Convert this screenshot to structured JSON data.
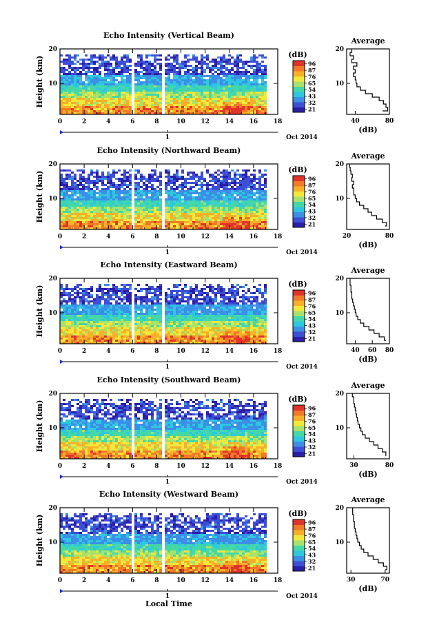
{
  "figure": {
    "xlabel": "Local Time",
    "date_label": "Oct 2014",
    "day_label": "1",
    "colorbar_unit": "(dB)",
    "colorbar_ticks": [
      "96",
      "87",
      "76",
      "65",
      "54",
      "43",
      "32",
      "21"
    ],
    "colormap": [
      "#2b1ea8",
      "#3c4fd6",
      "#3c8fe6",
      "#2ec7e0",
      "#44d8a8",
      "#a8e26a",
      "#f2e83c",
      "#f7b028",
      "#f07a28",
      "#e0342a"
    ]
  },
  "chart_data": [
    {
      "type": "heatmap",
      "title": "Echo Intensity (Vertical Beam)",
      "ylabel": "Height (km)",
      "xlim": [
        0,
        18
      ],
      "ylim": [
        1,
        20
      ],
      "x_ticks": [
        "0",
        "2",
        "4",
        "6",
        "8",
        "10",
        "12",
        "14",
        "16",
        "18"
      ],
      "y_ticks": [
        "20",
        "10"
      ],
      "profile": {
        "title": "Average",
        "xlabel": "(dB)",
        "xlim": [
          30,
          80
        ],
        "x_ticks": [
          "40",
          "80"
        ],
        "heights": [
          2,
          3,
          4,
          5,
          6,
          7,
          8,
          9,
          10,
          11,
          12,
          13,
          14,
          15,
          16,
          17,
          18,
          19,
          20
        ],
        "values": [
          72,
          78,
          76,
          73,
          68,
          60,
          52,
          46,
          42,
          41,
          40,
          38,
          40,
          38,
          42,
          36,
          38,
          34,
          36
        ]
      }
    },
    {
      "type": "heatmap",
      "title": "Echo Intensity (Northward Beam)",
      "ylabel": "Height (km)",
      "xlim": [
        0,
        18
      ],
      "ylim": [
        1,
        20
      ],
      "x_ticks": [
        "0",
        "2",
        "4",
        "6",
        "8",
        "10",
        "12",
        "14",
        "16",
        "18"
      ],
      "y_ticks": [
        "20",
        "10"
      ],
      "profile": {
        "title": "Average",
        "xlabel": "(dB)",
        "xlim": [
          20,
          80
        ],
        "x_ticks": [
          "20",
          "80"
        ],
        "heights": [
          2,
          3,
          4,
          5,
          6,
          7,
          8,
          9,
          10,
          11,
          12,
          13,
          14,
          15,
          16,
          17,
          18,
          19,
          20
        ],
        "values": [
          74,
          76,
          70,
          62,
          55,
          50,
          44,
          38,
          34,
          32,
          30,
          30,
          28,
          30,
          27,
          28,
          26,
          25,
          24
        ]
      }
    },
    {
      "type": "heatmap",
      "title": "Echo Intensity (Eastward Beam)",
      "ylabel": "Height (km)",
      "xlim": [
        0,
        18
      ],
      "ylim": [
        1,
        20
      ],
      "x_ticks": [
        "0",
        "2",
        "4",
        "6",
        "8",
        "10",
        "12",
        "14",
        "16",
        "18"
      ],
      "y_ticks": [
        "20",
        "10"
      ],
      "profile": {
        "title": "Average",
        "xlabel": "(dB)",
        "xlim": [
          30,
          80
        ],
        "x_ticks": [
          "40",
          "60",
          "80"
        ],
        "heights": [
          2,
          3,
          4,
          5,
          6,
          7,
          8,
          9,
          10,
          11,
          12,
          13,
          14,
          15,
          16,
          17,
          18,
          19,
          20
        ],
        "values": [
          76,
          74,
          68,
          62,
          56,
          50,
          46,
          43,
          41,
          40,
          39,
          38,
          37,
          36,
          36,
          35,
          35,
          34,
          34
        ]
      }
    },
    {
      "type": "heatmap",
      "title": "Echo Intensity (Southward Beam)",
      "ylabel": "Height (km)",
      "xlim": [
        0,
        18
      ],
      "ylim": [
        1,
        20
      ],
      "x_ticks": [
        "0",
        "2",
        "4",
        "6",
        "8",
        "10",
        "12",
        "14",
        "16",
        "18"
      ],
      "y_ticks": [
        "20",
        "10"
      ],
      "profile": {
        "title": "Average",
        "xlabel": "(dB)",
        "xlim": [
          20,
          80
        ],
        "x_ticks": [
          "30",
          "80"
        ],
        "heights": [
          2,
          3,
          4,
          5,
          6,
          7,
          8,
          9,
          10,
          11,
          12,
          13,
          14,
          15,
          16,
          17,
          18,
          19,
          20
        ],
        "values": [
          74,
          75,
          70,
          64,
          58,
          52,
          46,
          42,
          40,
          38,
          36,
          35,
          34,
          33,
          32,
          31,
          30,
          30,
          28
        ]
      }
    },
    {
      "type": "heatmap",
      "title": "Echo Intensity (Westward Beam)",
      "ylabel": "Height (km)",
      "xlim": [
        0,
        18
      ],
      "ylim": [
        1,
        20
      ],
      "x_ticks": [
        "0",
        "2",
        "4",
        "6",
        "8",
        "10",
        "12",
        "14",
        "16",
        "18"
      ],
      "y_ticks": [
        "20",
        "10"
      ],
      "profile": {
        "title": "Average",
        "xlabel": "(dB)",
        "xlim": [
          25,
          75
        ],
        "x_ticks": [
          "30",
          "70"
        ],
        "heights": [
          2,
          3,
          4,
          5,
          6,
          7,
          8,
          9,
          10,
          11,
          12,
          13,
          14,
          15,
          16,
          17,
          18,
          19,
          20
        ],
        "values": [
          70,
          72,
          68,
          62,
          56,
          50,
          45,
          42,
          40,
          38,
          37,
          36,
          35,
          34,
          34,
          33,
          33,
          32,
          32
        ]
      }
    }
  ]
}
